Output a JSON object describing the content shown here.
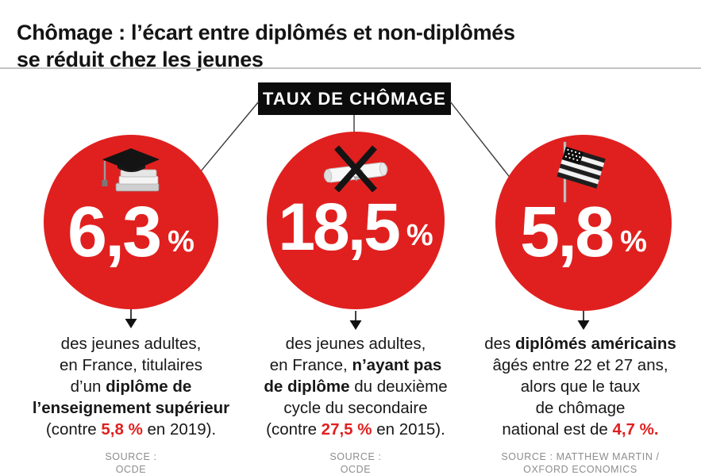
{
  "title": {
    "line1": "Chômage : l’écart entre diplômés et non-diplômés",
    "line2": "se réduit chez les jeunes"
  },
  "badge": {
    "label": "TAUX DE CHÔMAGE"
  },
  "colors": {
    "red": "#e0201f",
    "badge_bg": "#0c0c0c",
    "source_gray": "#8d8d8d",
    "divider_gray": "#c3c3c3"
  },
  "cards": [
    {
      "icon": "graduation-cap",
      "value": "6,3",
      "unit": "%",
      "description_segments": [
        {
          "text": "des jeunes adultes,\nen France, titulaires\nd’un "
        },
        {
          "text": "diplôme de\nl’enseignement supérieur",
          "bold": true
        },
        {
          "text": "\n(contre "
        },
        {
          "text": "5,8 %",
          "bold": true,
          "red": true
        },
        {
          "text": " en 2019)."
        }
      ],
      "source_segments": [
        {
          "text": "SOURCE :\nOCDE"
        }
      ]
    },
    {
      "icon": "no-diploma",
      "value": "18,5",
      "unit": "%",
      "description_segments": [
        {
          "text": "des jeunes adultes,\nen France, "
        },
        {
          "text": "n’ayant pas\nde diplôme",
          "bold": true
        },
        {
          "text": " du deuxième\ncycle du secondaire\n(contre "
        },
        {
          "text": "27,5 %",
          "bold": true,
          "red": true
        },
        {
          "text": " en 2015)."
        }
      ],
      "source_segments": [
        {
          "text": "SOURCE :\nOCDE"
        }
      ]
    },
    {
      "icon": "us-flag",
      "value": "5,8",
      "unit": "%",
      "description_segments": [
        {
          "text": "des "
        },
        {
          "text": "diplômés américains",
          "bold": true
        },
        {
          "text": "\nâgés entre 22 et 27 ans,\nalors que le taux\nde chômage\nnational est de "
        },
        {
          "text": "4,7 %.",
          "bold": true,
          "red": true
        }
      ],
      "source_segments": [
        {
          "text": "SOURCE : MATTHEW MARTIN /\nOXFORD ECONOMICS"
        }
      ]
    }
  ]
}
